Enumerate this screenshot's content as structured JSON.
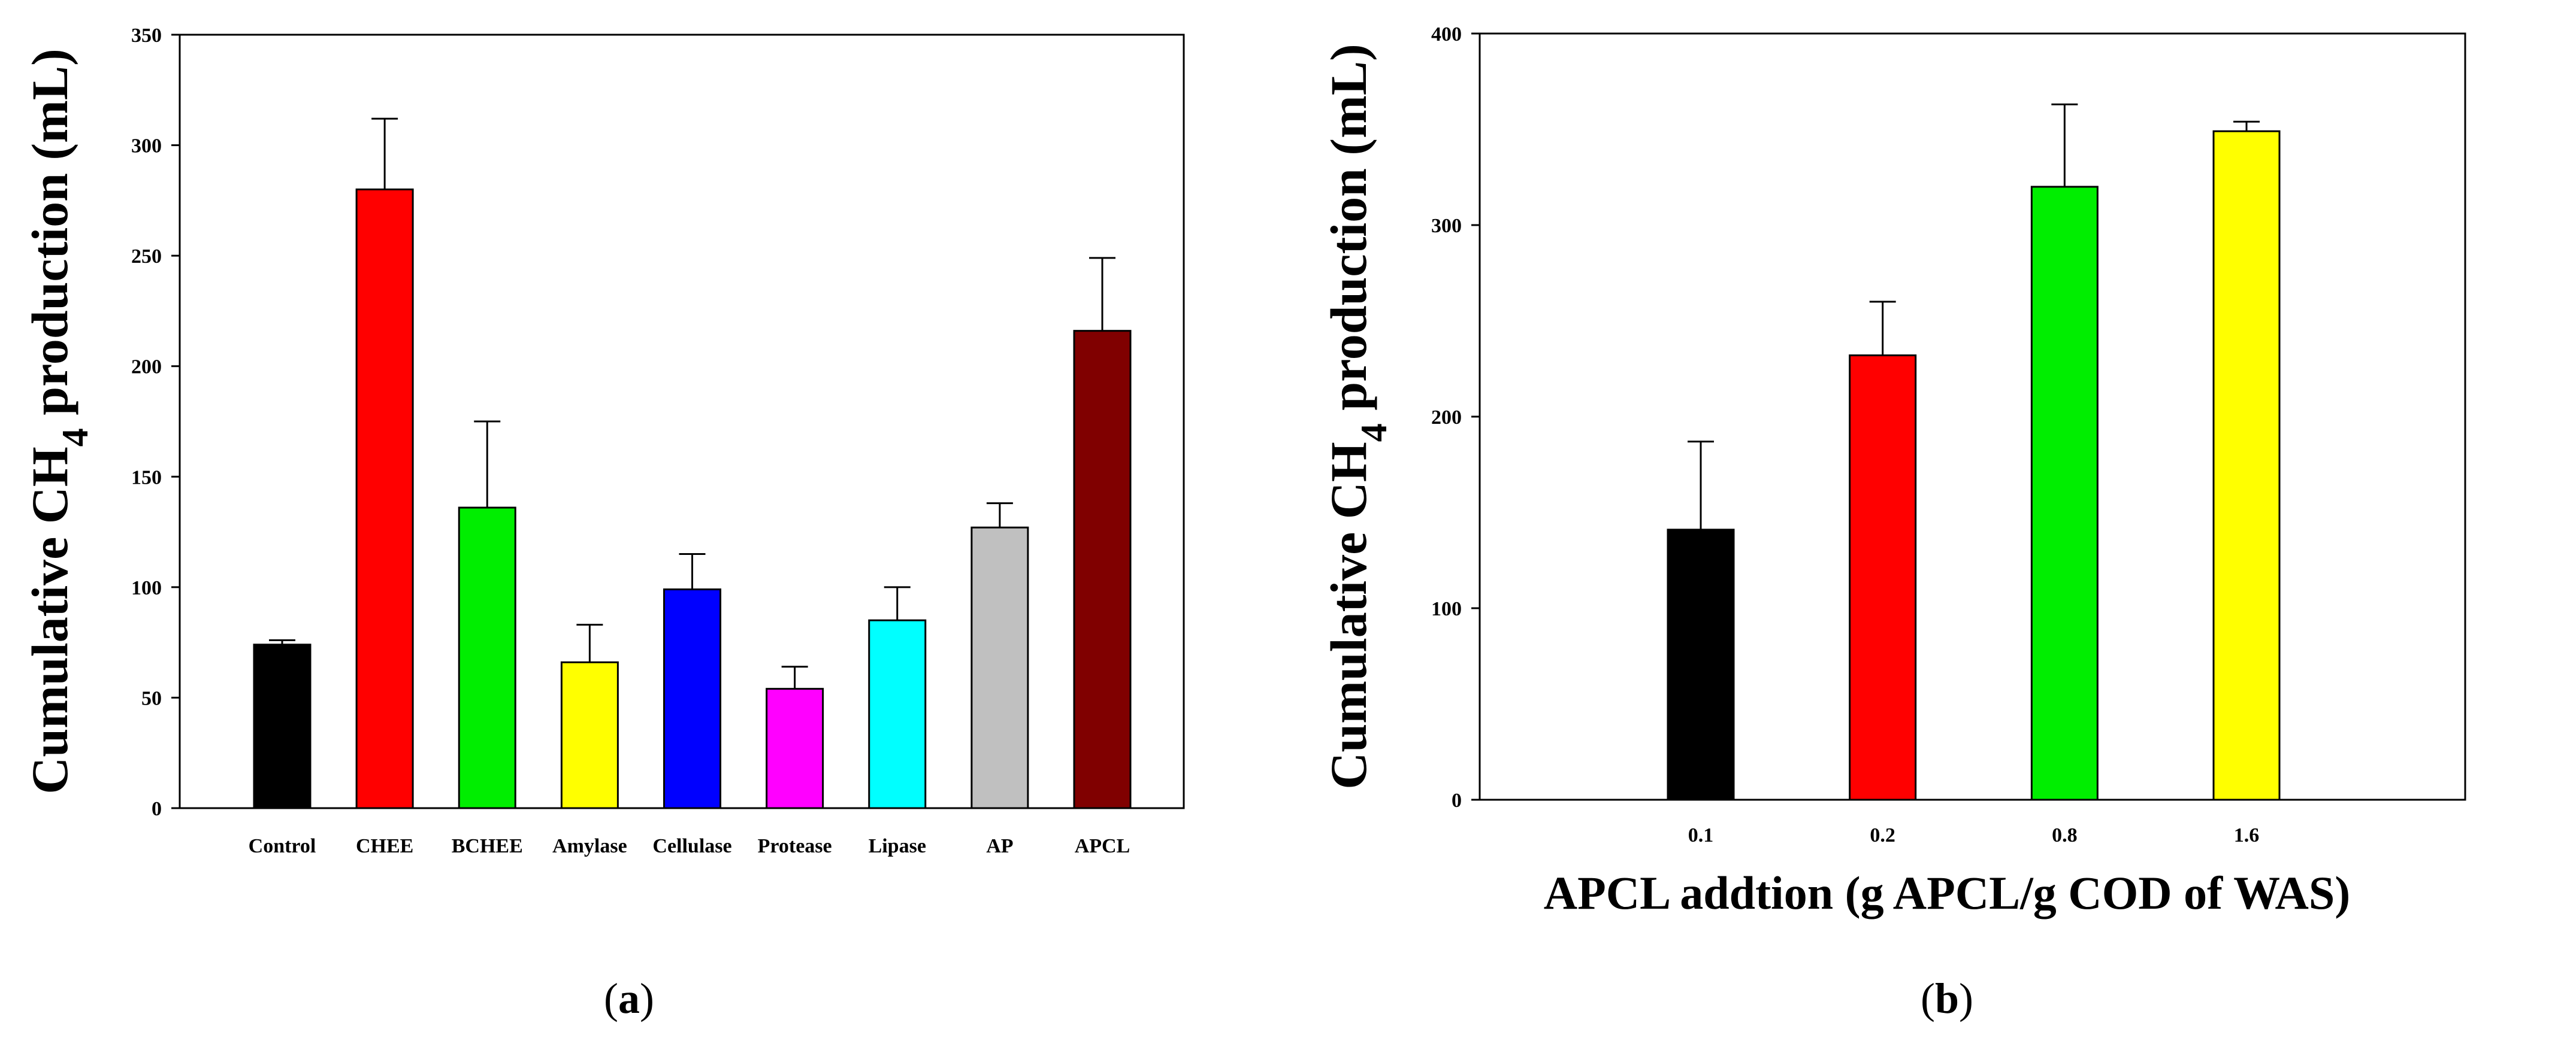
{
  "chart_data": [
    {
      "type": "bar",
      "panel_label": "(a)",
      "panel_letter": "a",
      "title": "",
      "xlabel": "",
      "ylabel": {
        "prefix": "Cumulative CH",
        "subscript": "4",
        "suffix": " production (mL)"
      },
      "ylim": [
        0,
        350
      ],
      "yticks": [
        0,
        50,
        100,
        150,
        200,
        250,
        300,
        350
      ],
      "categories": [
        "Control",
        "CHEE",
        "BCHEE",
        "Amylase",
        "Cellulase",
        "Protease",
        "Lipase",
        "AP",
        "APCL"
      ],
      "values": [
        74,
        280,
        136,
        66,
        99,
        54,
        85,
        127,
        216
      ],
      "errors": [
        2,
        32,
        39,
        17,
        16,
        10,
        15,
        11,
        33
      ],
      "colors": [
        "#000000",
        "#ff0000",
        "#00ee00",
        "#ffff00",
        "#0000ff",
        "#ff00ff",
        "#00ffff",
        "#c0c0c0",
        "#800000"
      ],
      "grid": false
    },
    {
      "type": "bar",
      "panel_label": "(b)",
      "panel_letter": "b",
      "title": "",
      "xlabel": "APCL addtion (g APCL/g COD of WAS)",
      "ylabel": {
        "prefix": "Cumulative CH",
        "subscript": "4",
        "suffix": " production (mL)"
      },
      "ylim": [
        0,
        400
      ],
      "yticks": [
        0,
        100,
        200,
        300,
        400
      ],
      "categories": [
        "0.1",
        "0.2",
        "0.8",
        "1.6"
      ],
      "values": [
        141,
        232,
        320,
        349
      ],
      "errors": [
        46,
        28,
        43,
        5
      ],
      "colors": [
        "#000000",
        "#ff0000",
        "#00ee00",
        "#ffff00"
      ],
      "grid": false
    }
  ]
}
